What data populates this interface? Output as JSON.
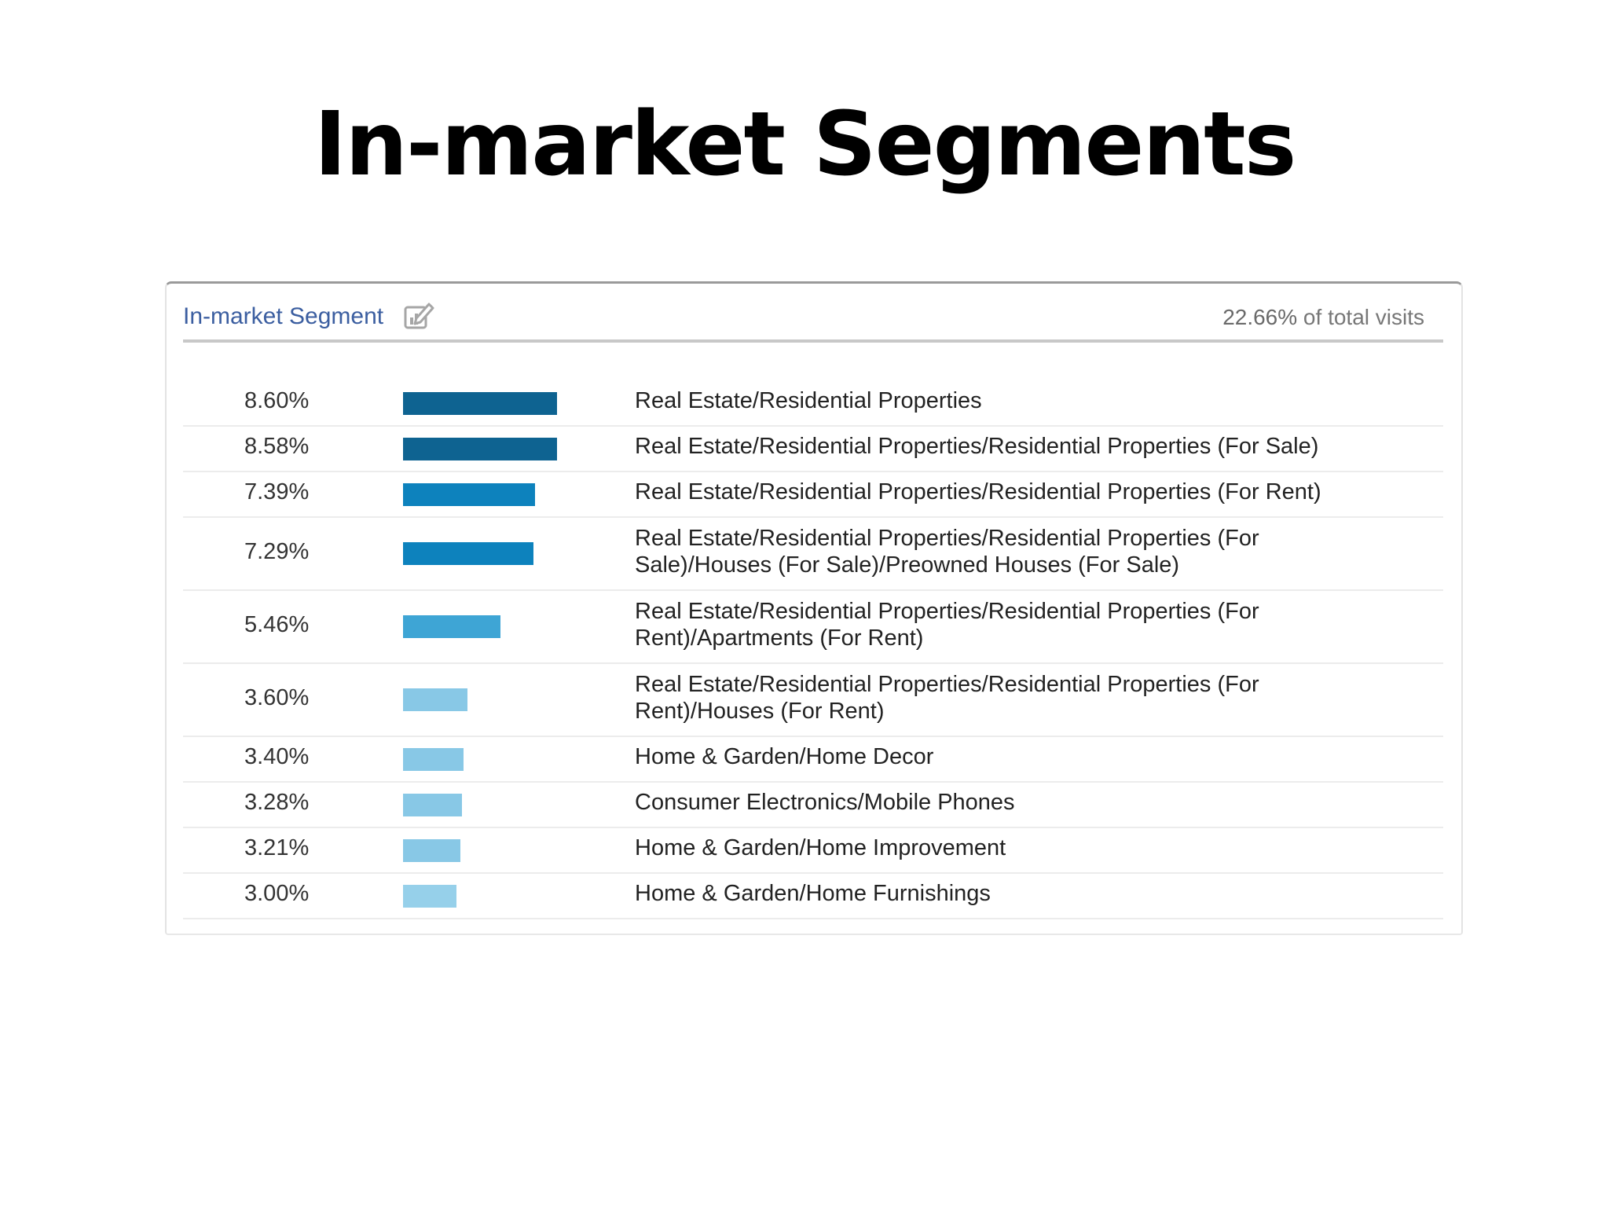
{
  "slide": {
    "title": "In-market Segments"
  },
  "panel": {
    "header_title": "In-market Segment",
    "header_icon": "edit-chart-icon",
    "summary_value": "22.66%",
    "summary_suffix": " of total visits"
  },
  "chart_data": {
    "type": "bar",
    "orientation": "horizontal",
    "title": "In-market Segment",
    "value_unit": "%",
    "xlim": [
      0,
      8.6
    ],
    "categories": [
      "Real Estate/Residential Properties",
      "Real Estate/Residential Properties/Residential Properties (For Sale)",
      "Real Estate/Residential Properties/Residential Properties (For Rent)",
      "Real Estate/Residential Properties/Residential Properties (For Sale)/Houses (For Sale)/Preowned Houses (For Sale)",
      "Real Estate/Residential Properties/Residential Properties (For Rent)/Apartments (For Rent)",
      "Real Estate/Residential Properties/Residential Properties (For Rent)/Houses (For Rent)",
      "Home & Garden/Home Decor",
      "Consumer Electronics/Mobile Phones",
      "Home & Garden/Home Improvement",
      "Home & Garden/Home Furnishings"
    ],
    "label_lines": [
      [
        "Real Estate/Residential Properties"
      ],
      [
        "Real Estate/Residential Properties/Residential Properties (For Sale)"
      ],
      [
        "Real Estate/Residential Properties/Residential Properties (For Rent)"
      ],
      [
        "Real Estate/Residential Properties/Residential Properties (For",
        "Sale)/Houses (For Sale)/Preowned Houses (For Sale)"
      ],
      [
        "Real Estate/Residential Properties/Residential Properties (For",
        "Rent)/Apartments (For Rent)"
      ],
      [
        "Real Estate/Residential Properties/Residential Properties (For",
        "Rent)/Houses (For Rent)"
      ],
      [
        "Home & Garden/Home Decor"
      ],
      [
        "Consumer Electronics/Mobile Phones"
      ],
      [
        "Home & Garden/Home Improvement"
      ],
      [
        "Home & Garden/Home Furnishings"
      ]
    ],
    "values": [
      8.6,
      8.58,
      7.39,
      7.29,
      5.46,
      3.6,
      3.4,
      3.28,
      3.21,
      3.0
    ],
    "value_labels": [
      "8.60%",
      "8.58%",
      "7.39%",
      "7.29%",
      "5.46%",
      "3.60%",
      "3.40%",
      "3.28%",
      "3.21%",
      "3.00%"
    ],
    "bar_colors": [
      "#0e6391",
      "#0e6391",
      "#0d82bd",
      "#0d82bd",
      "#3ea5d5",
      "#88c8e6",
      "#88c8e6",
      "#88c8e6",
      "#88c8e6",
      "#96d0ea"
    ],
    "grid": false,
    "legend": "none"
  }
}
